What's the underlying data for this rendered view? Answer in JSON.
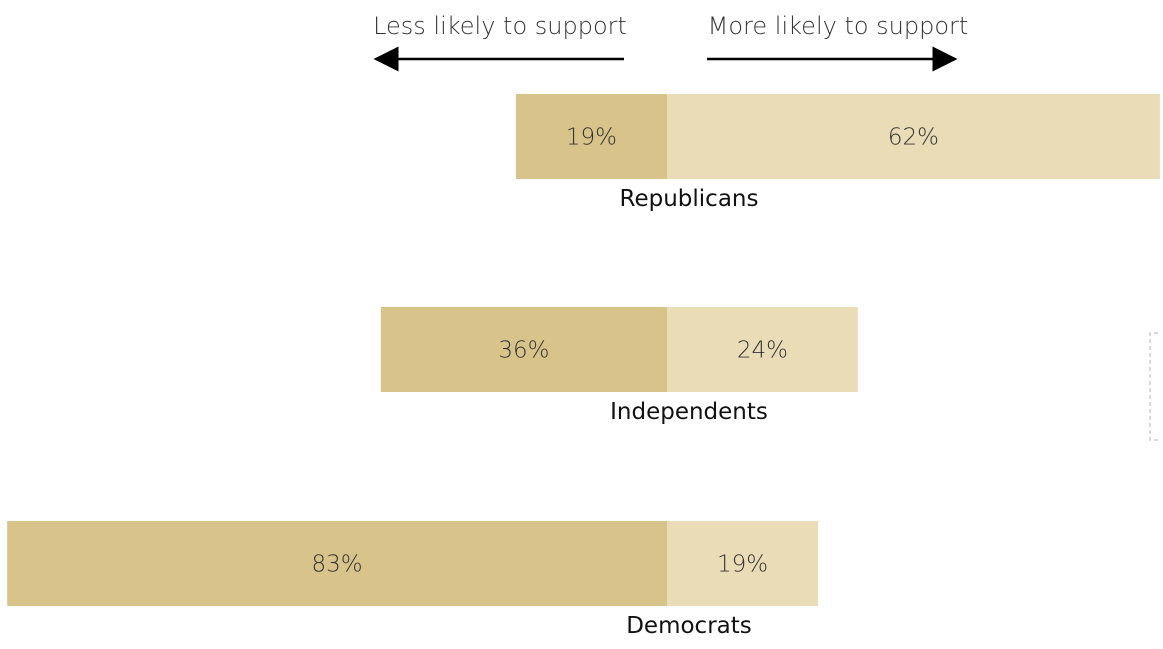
{
  "chart_data": {
    "type": "bar",
    "orientation": "horizontal-diverging",
    "legend": {
      "left_label": "Less likely to support",
      "right_label": "More likely to support"
    },
    "categories": [
      "Republicans",
      "Independents",
      "Democrats"
    ],
    "series": [
      {
        "name": "Less likely to support",
        "values": [
          19,
          36,
          83
        ],
        "color": "#d8c48b"
      },
      {
        "name": "More likely to support",
        "values": [
          62,
          24,
          19
        ],
        "color": "#e9dcb7"
      }
    ],
    "value_labels": {
      "less": [
        "19%",
        "36%",
        "83%"
      ],
      "more": [
        "62%",
        "24%",
        "19%"
      ]
    },
    "value_unit": "%",
    "grid": false
  }
}
